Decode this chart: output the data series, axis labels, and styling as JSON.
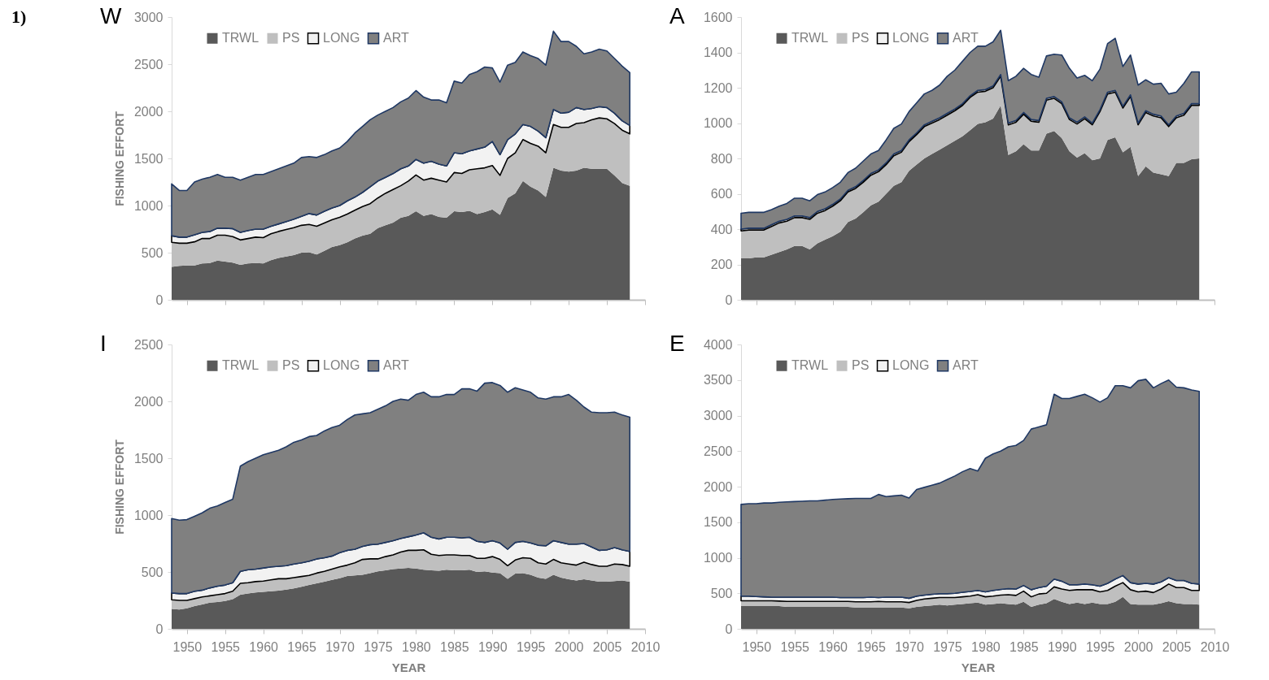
{
  "chart_data": [
    {
      "type": "area",
      "title": "W",
      "ylabel": "FISHING EFFORT",
      "annotations": [
        "1)"
      ],
      "stacked": true,
      "legend": "top left",
      "tick_labels": "y",
      "xlim": [
        1948,
        2010
      ],
      "xticks": [
        1950,
        1955,
        1960,
        1965,
        1970,
        1975,
        1980,
        1985,
        1990,
        1995,
        2000,
        2005,
        2010
      ],
      "ylim": [
        0,
        3000
      ],
      "yticks": [
        0,
        500,
        1000,
        1500,
        2000,
        2500,
        3000
      ],
      "x": [
        1948,
        1949,
        1950,
        1951,
        1952,
        1953,
        1954,
        1955,
        1956,
        1957,
        1958,
        1959,
        1960,
        1961,
        1962,
        1963,
        1964,
        1965,
        1966,
        1967,
        1968,
        1969,
        1970,
        1971,
        1972,
        1973,
        1974,
        1975,
        1976,
        1977,
        1978,
        1979,
        1980,
        1981,
        1982,
        1983,
        1984,
        1985,
        1986,
        1987,
        1988,
        1989,
        1990,
        1991,
        1992,
        1993,
        1994,
        1995,
        1996,
        1997,
        1998,
        1999,
        2000,
        2001,
        2002,
        2003,
        2004,
        2005,
        2006,
        2007,
        2008
      ],
      "series": [
        {
          "name": "TRWL",
          "color": "#595959",
          "values": [
            350,
            360,
            365,
            365,
            385,
            390,
            415,
            405,
            395,
            370,
            385,
            390,
            385,
            420,
            445,
            460,
            475,
            500,
            505,
            480,
            520,
            560,
            580,
            610,
            650,
            680,
            700,
            760,
            790,
            820,
            870,
            890,
            940,
            890,
            910,
            880,
            870,
            940,
            930,
            945,
            910,
            930,
            960,
            900,
            1080,
            1130,
            1260,
            1200,
            1160,
            1090,
            1400,
            1370,
            1360,
            1370,
            1400,
            1390,
            1390,
            1390,
            1320,
            1240,
            1210
          ]
        },
        {
          "name": "PS",
          "color": "#bfbfbf",
          "values": [
            260,
            240,
            235,
            250,
            265,
            260,
            270,
            280,
            275,
            265,
            265,
            275,
            275,
            280,
            280,
            285,
            290,
            290,
            295,
            300,
            295,
            290,
            295,
            300,
            300,
            310,
            320,
            320,
            340,
            350,
            340,
            370,
            385,
            380,
            380,
            390,
            380,
            410,
            410,
            435,
            480,
            470,
            465,
            420,
            420,
            430,
            440,
            460,
            470,
            470,
            460,
            460,
            470,
            500,
            480,
            520,
            540,
            530,
            550,
            560,
            550
          ]
        },
        {
          "name": "LONG",
          "color": "#f2f2f2",
          "values": [
            70,
            65,
            65,
            75,
            65,
            75,
            75,
            75,
            85,
            80,
            85,
            85,
            90,
            80,
            80,
            85,
            90,
            95,
            115,
            120,
            125,
            125,
            125,
            140,
            140,
            150,
            180,
            180,
            170,
            170,
            180,
            160,
            165,
            180,
            180,
            170,
            170,
            210,
            210,
            200,
            210,
            220,
            255,
            220,
            200,
            200,
            160,
            180,
            160,
            160,
            160,
            150,
            160,
            170,
            140,
            120,
            120,
            120,
            110,
            100,
            90
          ]
        },
        {
          "name": "ART",
          "color": "#808080",
          "values": [
            550,
            495,
            495,
            560,
            565,
            575,
            570,
            540,
            545,
            555,
            565,
            580,
            580,
            580,
            585,
            590,
            595,
            625,
            605,
            610,
            600,
            605,
            610,
            630,
            680,
            700,
            710,
            700,
            700,
            700,
            710,
            720,
            730,
            700,
            650,
            680,
            670,
            760,
            750,
            810,
            820,
            850,
            780,
            770,
            790,
            760,
            770,
            750,
            770,
            770,
            830,
            760,
            750,
            650,
            590,
            600,
            610,
            600,
            580,
            580,
            560
          ]
        }
      ]
    },
    {
      "type": "area",
      "title": "A",
      "stacked": true,
      "legend": "top left",
      "tick_labels": "y",
      "xlim": [
        1948,
        2010
      ],
      "xticks": [
        1950,
        1955,
        1960,
        1965,
        1970,
        1975,
        1980,
        1985,
        1990,
        1995,
        2000,
        2005,
        2010
      ],
      "ylim": [
        0,
        1600
      ],
      "yticks": [
        0,
        200,
        400,
        600,
        800,
        1000,
        1200,
        1400,
        1600
      ],
      "x": [
        1948,
        1949,
        1950,
        1951,
        1952,
        1953,
        1954,
        1955,
        1956,
        1957,
        1958,
        1959,
        1960,
        1961,
        1962,
        1963,
        1964,
        1965,
        1966,
        1967,
        1968,
        1969,
        1970,
        1971,
        1972,
        1973,
        1974,
        1975,
        1976,
        1977,
        1978,
        1979,
        1980,
        1981,
        1982,
        1983,
        1984,
        1985,
        1986,
        1987,
        1988,
        1989,
        1990,
        1991,
        1992,
        1993,
        1994,
        1995,
        1996,
        1997,
        1998,
        1999,
        2000,
        2001,
        2002,
        2003,
        2004,
        2005,
        2006,
        2007,
        2008
      ],
      "series": [
        {
          "name": "TRWL",
          "color": "#595959",
          "values": [
            235,
            235,
            240,
            240,
            255,
            270,
            285,
            305,
            305,
            285,
            320,
            340,
            360,
            385,
            440,
            460,
            495,
            535,
            555,
            600,
            645,
            665,
            730,
            765,
            800,
            825,
            850,
            875,
            900,
            925,
            960,
            995,
            1005,
            1025,
            1100,
            820,
            840,
            880,
            845,
            845,
            940,
            955,
            915,
            840,
            805,
            830,
            790,
            800,
            905,
            920,
            835,
            865,
            700,
            755,
            720,
            710,
            700,
            775,
            775,
            795,
            800
          ]
        },
        {
          "name": "PS",
          "color": "#bfbfbf",
          "values": [
            155,
            160,
            155,
            155,
            160,
            165,
            160,
            160,
            160,
            170,
            170,
            165,
            170,
            175,
            170,
            170,
            170,
            170,
            170,
            165,
            170,
            170,
            165,
            170,
            180,
            175,
            170,
            170,
            170,
            175,
            185,
            180,
            175,
            175,
            165,
            170,
            165,
            170,
            165,
            160,
            190,
            185,
            195,
            180,
            190,
            195,
            200,
            265,
            260,
            255,
            250,
            285,
            290,
            305,
            320,
            320,
            280,
            255,
            270,
            305,
            300
          ]
        },
        {
          "name": "LONG",
          "color": "#f2f2f2",
          "values": [
            10,
            10,
            10,
            10,
            10,
            10,
            10,
            10,
            10,
            10,
            10,
            10,
            10,
            10,
            10,
            10,
            10,
            10,
            10,
            10,
            10,
            10,
            10,
            10,
            10,
            10,
            10,
            10,
            10,
            10,
            10,
            10,
            10,
            10,
            10,
            10,
            10,
            10,
            10,
            10,
            10,
            10,
            10,
            10,
            10,
            10,
            10,
            10,
            10,
            10,
            10,
            10,
            10,
            10,
            10,
            10,
            10,
            10,
            10,
            10,
            10
          ]
        },
        {
          "name": "ART",
          "color": "#808080",
          "values": [
            90,
            90,
            90,
            90,
            85,
            85,
            90,
            100,
            100,
            95,
            95,
            95,
            95,
            95,
            100,
            105,
            110,
            110,
            110,
            130,
            145,
            150,
            160,
            170,
            175,
            175,
            185,
            210,
            220,
            240,
            245,
            250,
            245,
            250,
            250,
            240,
            250,
            250,
            255,
            245,
            240,
            240,
            265,
            280,
            250,
            235,
            240,
            230,
            275,
            295,
            225,
            225,
            215,
            175,
            170,
            185,
            175,
            135,
            170,
            180,
            180
          ]
        }
      ]
    },
    {
      "type": "area",
      "title": "I",
      "ylabel": "FISHING EFFORT",
      "xlabel": "YEAR",
      "stacked": true,
      "legend": "top left",
      "xlim": [
        1948,
        2010
      ],
      "xticks": [
        1950,
        1955,
        1960,
        1965,
        1970,
        1975,
        1980,
        1985,
        1990,
        1995,
        2000,
        2005,
        2010
      ],
      "ylim": [
        0,
        2500
      ],
      "yticks": [
        0,
        500,
        1000,
        1500,
        2000,
        2500
      ],
      "x": [
        1948,
        1949,
        1950,
        1951,
        1952,
        1953,
        1954,
        1955,
        1956,
        1957,
        1958,
        1959,
        1960,
        1961,
        1962,
        1963,
        1964,
        1965,
        1966,
        1967,
        1968,
        1969,
        1970,
        1971,
        1972,
        1973,
        1974,
        1975,
        1976,
        1977,
        1978,
        1979,
        1980,
        1981,
        1982,
        1983,
        1984,
        1985,
        1986,
        1987,
        1988,
        1989,
        1990,
        1991,
        1992,
        1993,
        1994,
        1995,
        1996,
        1997,
        1998,
        1999,
        2000,
        2001,
        2002,
        2003,
        2004,
        2005,
        2006,
        2007,
        2008
      ],
      "series": [
        {
          "name": "TRWL",
          "color": "#595959",
          "values": [
            175,
            170,
            180,
            200,
            215,
            230,
            235,
            245,
            260,
            300,
            310,
            320,
            325,
            330,
            335,
            345,
            355,
            370,
            385,
            400,
            415,
            430,
            445,
            465,
            470,
            475,
            490,
            505,
            515,
            525,
            530,
            535,
            530,
            520,
            515,
            510,
            520,
            515,
            515,
            520,
            500,
            505,
            495,
            490,
            440,
            485,
            490,
            475,
            450,
            440,
            475,
            450,
            435,
            425,
            435,
            425,
            415,
            415,
            420,
            425,
            415
          ]
        },
        {
          "name": "PS",
          "color": "#bfbfbf",
          "values": [
            80,
            80,
            70,
            65,
            65,
            60,
            65,
            65,
            70,
            100,
            95,
            95,
            95,
            100,
            105,
            95,
            95,
            90,
            85,
            90,
            90,
            95,
            100,
            95,
            110,
            135,
            125,
            110,
            120,
            125,
            145,
            155,
            160,
            175,
            140,
            135,
            130,
            135,
            130,
            125,
            120,
            115,
            140,
            120,
            115,
            120,
            135,
            145,
            130,
            130,
            135,
            130,
            135,
            135,
            150,
            140,
            135,
            135,
            150,
            140,
            135
          ]
        },
        {
          "name": "LONG",
          "color": "#f2f2f2",
          "values": [
            60,
            60,
            60,
            65,
            60,
            70,
            75,
            75,
            75,
            105,
            115,
            110,
            115,
            115,
            110,
            115,
            120,
            120,
            125,
            125,
            120,
            115,
            125,
            130,
            120,
            115,
            125,
            130,
            125,
            125,
            120,
            120,
            135,
            150,
            150,
            145,
            155,
            155,
            155,
            160,
            150,
            140,
            140,
            145,
            145,
            155,
            145,
            135,
            155,
            160,
            165,
            180,
            175,
            185,
            165,
            155,
            140,
            145,
            145,
            130,
            130
          ]
        },
        {
          "name": "ART",
          "color": "#808080",
          "values": [
            655,
            645,
            650,
            660,
            680,
            700,
            705,
            725,
            735,
            925,
            950,
            975,
            995,
            1005,
            1020,
            1045,
            1070,
            1080,
            1095,
            1085,
            1115,
            1130,
            1120,
            1150,
            1180,
            1165,
            1160,
            1185,
            1200,
            1225,
            1225,
            1200,
            1235,
            1235,
            1235,
            1250,
            1255,
            1255,
            1310,
            1305,
            1320,
            1400,
            1390,
            1385,
            1380,
            1360,
            1330,
            1325,
            1295,
            1290,
            1265,
            1280,
            1315,
            1265,
            1200,
            1185,
            1210,
            1205,
            1190,
            1185,
            1180
          ]
        }
      ]
    },
    {
      "type": "area",
      "title": "E",
      "xlabel": "YEAR",
      "stacked": true,
      "legend": "top left",
      "xlim": [
        1948,
        2010
      ],
      "xticks": [
        1950,
        1955,
        1960,
        1965,
        1970,
        1975,
        1980,
        1985,
        1990,
        1995,
        2000,
        2005,
        2010
      ],
      "ylim": [
        0,
        4000
      ],
      "yticks": [
        0,
        500,
        1000,
        1500,
        2000,
        2500,
        3000,
        3500,
        4000
      ],
      "x": [
        1948,
        1949,
        1950,
        1951,
        1952,
        1953,
        1954,
        1955,
        1956,
        1957,
        1958,
        1959,
        1960,
        1961,
        1962,
        1963,
        1964,
        1965,
        1966,
        1967,
        1968,
        1969,
        1970,
        1971,
        1972,
        1973,
        1974,
        1975,
        1976,
        1977,
        1978,
        1979,
        1980,
        1981,
        1982,
        1983,
        1984,
        1985,
        1986,
        1987,
        1988,
        1989,
        1990,
        1991,
        1992,
        1993,
        1994,
        1995,
        1996,
        1997,
        1998,
        1999,
        2000,
        2001,
        2002,
        2003,
        2004,
        2005,
        2006,
        2007,
        2008
      ],
      "series": [
        {
          "name": "TRWL",
          "color": "#595959",
          "values": [
            320,
            320,
            320,
            320,
            320,
            320,
            310,
            310,
            310,
            310,
            310,
            310,
            310,
            310,
            310,
            300,
            300,
            300,
            300,
            300,
            300,
            300,
            290,
            310,
            320,
            330,
            340,
            330,
            340,
            350,
            360,
            370,
            340,
            350,
            360,
            350,
            340,
            380,
            310,
            340,
            360,
            420,
            380,
            350,
            370,
            350,
            370,
            350,
            350,
            380,
            450,
            350,
            340,
            340,
            340,
            360,
            390,
            360,
            350,
            350,
            340
          ]
        },
        {
          "name": "PS",
          "color": "#bfbfbf",
          "values": [
            75,
            75,
            75,
            75,
            75,
            70,
            75,
            75,
            75,
            75,
            75,
            75,
            75,
            75,
            75,
            80,
            80,
            80,
            85,
            80,
            80,
            80,
            80,
            90,
            100,
            100,
            100,
            110,
            100,
            100,
            100,
            110,
            110,
            110,
            115,
            130,
            130,
            150,
            140,
            150,
            140,
            170,
            180,
            190,
            180,
            200,
            180,
            170,
            190,
            220,
            200,
            200,
            180,
            190,
            170,
            200,
            240,
            220,
            230,
            190,
            200
          ]
        },
        {
          "name": "LONG",
          "color": "#f2f2f2",
          "values": [
            65,
            65,
            60,
            55,
            50,
            55,
            60,
            60,
            60,
            60,
            60,
            60,
            60,
            55,
            55,
            60,
            60,
            65,
            55,
            65,
            65,
            65,
            60,
            60,
            55,
            55,
            55,
            55,
            60,
            65,
            65,
            60,
            70,
            80,
            80,
            85,
            90,
            80,
            100,
            90,
            100,
            110,
            110,
            80,
            70,
            80,
            70,
            80,
            100,
            100,
            100,
            100,
            110,
            110,
            120,
            100,
            90,
            100,
            100,
            100,
            90
          ]
        },
        {
          "name": "ART",
          "color": "#808080",
          "values": [
            1290,
            1300,
            1305,
            1320,
            1325,
            1335,
            1340,
            1345,
            1350,
            1355,
            1355,
            1365,
            1375,
            1385,
            1390,
            1395,
            1395,
            1390,
            1450,
            1415,
            1425,
            1435,
            1410,
            1500,
            1515,
            1535,
            1555,
            1605,
            1650,
            1695,
            1730,
            1680,
            1880,
            1920,
            1945,
            1995,
            2020,
            2040,
            2260,
            2260,
            2270,
            2600,
            2570,
            2620,
            2650,
            2670,
            2630,
            2590,
            2610,
            2720,
            2670,
            2740,
            2860,
            2870,
            2760,
            2790,
            2780,
            2720,
            2710,
            2720,
            2710
          ]
        }
      ]
    }
  ]
}
